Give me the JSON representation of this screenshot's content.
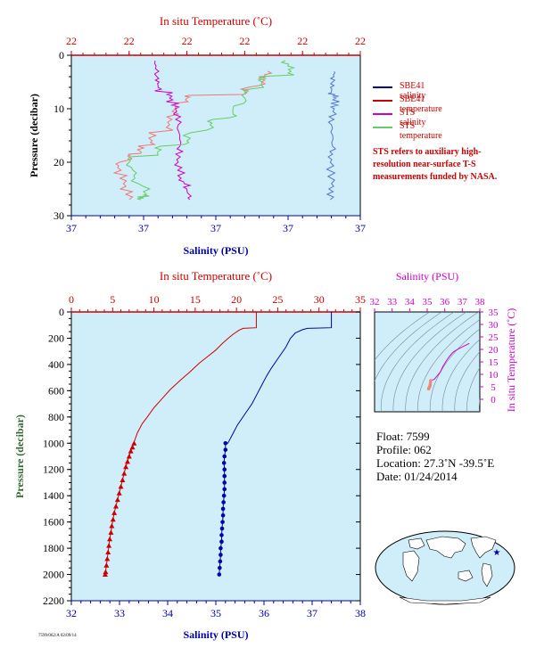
{
  "colors": {
    "plot_bg": "#d0eef9",
    "red": "#cc0000",
    "blue": "#0000aa",
    "magenta": "#cc00cc",
    "green": "#339933",
    "sbe_salinity_top": "#5577cc",
    "sbe_temp_top": "#ee7777",
    "sts_temp_top": "#77cc77",
    "axis_label_green": "#336633",
    "contour": "#778899"
  },
  "top_chart": {
    "title": "In situ Temperature (˚C)",
    "xlabel": "Salinity (PSU)",
    "ylabel": "Pressure (decibar)",
    "temp_ticks": [
      "22",
      "22",
      "22",
      "22",
      "22",
      "22"
    ],
    "salinity_ticks": [
      "37",
      "37",
      "37",
      "37",
      "37"
    ],
    "pressure_ticks": [
      "0",
      "10",
      "20",
      "30"
    ]
  },
  "legend": {
    "items": [
      {
        "label": "SBE41 salinity",
        "color": "#0000aa"
      },
      {
        "label": "SBE41 temperature",
        "color": "#cc0000"
      },
      {
        "label": "STS salinity",
        "color": "#cc00cc"
      },
      {
        "label": "STS temperature",
        "color": "#66cc66"
      }
    ],
    "note": "STS refers to auxiliary high-resolution near-surface T-S measurements funded by NASA."
  },
  "main_chart": {
    "title": "In situ Temperature (˚C)",
    "xlabel": "Salinity (PSU)",
    "ylabel": "Pressure (decibar)"
  },
  "ts_chart": {
    "title": "Salinity (PSU)",
    "ylabel": "In situ Temperature (˚C)"
  },
  "float_info": {
    "float": "Float:  7599",
    "profile": "Profile:  062",
    "location": "Location:  27.3˚N  -39.5˚E",
    "date": "Date:  01/24/2014"
  },
  "footer": "7599/062/A 02/09/14",
  "chart_data": [
    {
      "id": "main_profile",
      "type": "line",
      "ylabel": "Pressure (decibar)",
      "ylim": [
        2200,
        0
      ],
      "salinity_xlim": [
        32,
        38
      ],
      "temperature_xlim": [
        0,
        35
      ],
      "salinity_ticks": [
        32,
        33,
        34,
        35,
        36,
        37,
        38
      ],
      "temperature_ticks": [
        0,
        5,
        10,
        15,
        20,
        25,
        30,
        35
      ],
      "pressure_ticks": [
        0,
        200,
        400,
        600,
        800,
        1000,
        1200,
        1400,
        1600,
        1800,
        2000,
        2200
      ],
      "series": [
        {
          "name": "SBE41 salinity",
          "axis": "salinity",
          "color": "#0000aa",
          "continuous": [
            [
              37.4,
              0
            ],
            [
              37.4,
              60
            ],
            [
              37.4,
              120
            ],
            [
              36.9,
              125
            ],
            [
              36.8,
              135
            ],
            [
              36.65,
              160
            ],
            [
              36.55,
              200
            ],
            [
              36.45,
              270
            ],
            [
              36.3,
              350
            ],
            [
              36.15,
              430
            ],
            [
              36.05,
              490
            ],
            [
              35.95,
              560
            ],
            [
              35.85,
              630
            ],
            [
              35.75,
              700
            ],
            [
              35.6,
              780
            ],
            [
              35.45,
              860
            ],
            [
              35.35,
              930
            ],
            [
              35.25,
              1000
            ]
          ],
          "bottle": [
            [
              35.2,
              1000
            ],
            [
              35.2,
              1050
            ],
            [
              35.18,
              1100
            ],
            [
              35.17,
              1150
            ],
            [
              35.18,
              1200
            ],
            [
              35.18,
              1250
            ],
            [
              35.18,
              1300
            ],
            [
              35.18,
              1350
            ],
            [
              35.17,
              1400
            ],
            [
              35.16,
              1450
            ],
            [
              35.15,
              1500
            ],
            [
              35.15,
              1550
            ],
            [
              35.14,
              1600
            ],
            [
              35.13,
              1650
            ],
            [
              35.12,
              1700
            ],
            [
              35.12,
              1750
            ],
            [
              35.1,
              1800
            ],
            [
              35.1,
              1850
            ],
            [
              35.09,
              1900
            ],
            [
              35.08,
              1950
            ],
            [
              35.07,
              2000
            ]
          ]
        },
        {
          "name": "SBE41 temperature",
          "axis": "temperature",
          "color": "#cc0000",
          "continuous": [
            [
              22.4,
              0
            ],
            [
              22.4,
              120
            ],
            [
              20.8,
              125
            ],
            [
              20.3,
              140
            ],
            [
              19.6,
              170
            ],
            [
              19.0,
              200
            ],
            [
              18.3,
              240
            ],
            [
              17.5,
              290
            ],
            [
              16.5,
              340
            ],
            [
              15.5,
              390
            ],
            [
              14.3,
              460
            ],
            [
              13.2,
              520
            ],
            [
              12.0,
              590
            ],
            [
              11.0,
              660
            ],
            [
              10.0,
              730
            ],
            [
              9.2,
              800
            ],
            [
              8.6,
              850
            ],
            [
              8.0,
              920
            ],
            [
              7.6,
              990
            ]
          ],
          "bottle": [
            [
              7.6,
              1000
            ],
            [
              7.4,
              1030
            ],
            [
              7.2,
              1060
            ],
            [
              7.0,
              1100
            ],
            [
              6.8,
              1140
            ],
            [
              6.6,
              1180
            ],
            [
              6.4,
              1230
            ],
            [
              6.2,
              1280
            ],
            [
              6.0,
              1330
            ],
            [
              5.8,
              1380
            ],
            [
              5.6,
              1430
            ],
            [
              5.4,
              1480
            ],
            [
              5.2,
              1530
            ],
            [
              5.05,
              1580
            ],
            [
              4.9,
              1630
            ],
            [
              4.8,
              1680
            ],
            [
              4.65,
              1730
            ],
            [
              4.55,
              1780
            ],
            [
              4.45,
              1830
            ],
            [
              4.35,
              1880
            ],
            [
              4.25,
              1930
            ],
            [
              4.15,
              1980
            ],
            [
              4.1,
              2000
            ]
          ]
        }
      ]
    },
    {
      "id": "ts_diagram",
      "type": "scatter",
      "xlabel": "Salinity (PSU)",
      "ylabel": "In situ Temperature (˚C)",
      "xlim": [
        32,
        38
      ],
      "ylim": [
        -5,
        35
      ],
      "x_ticks": [
        32,
        33,
        34,
        35,
        36,
        37,
        38
      ],
      "y_ticks": [
        0,
        5,
        10,
        15,
        20,
        25,
        30,
        35
      ],
      "series": [
        {
          "name": "SBE41",
          "color": "#cc00cc",
          "points": [
            [
              37.4,
              22.4
            ],
            [
              36.8,
              20.3
            ],
            [
              36.5,
              19.0
            ],
            [
              36.3,
              17.5
            ],
            [
              36.1,
              15.5
            ],
            [
              35.9,
              13.2
            ],
            [
              35.75,
              11.0
            ],
            [
              35.55,
              9.2
            ],
            [
              35.4,
              8.0
            ],
            [
              35.2,
              7.5
            ],
            [
              35.18,
              6.6
            ],
            [
              35.17,
              5.8
            ],
            [
              35.15,
              5.2
            ],
            [
              35.12,
              4.8
            ],
            [
              35.1,
              4.5
            ],
            [
              35.08,
              4.2
            ]
          ]
        }
      ]
    },
    {
      "id": "near_surface",
      "type": "line",
      "ylabel": "Pressure (decibar)",
      "ylim": [
        30,
        0
      ],
      "pressure_ticks": [
        0,
        10,
        20,
        30
      ],
      "salinity_xlim": [
        37.0,
        37.5
      ],
      "temperature_xlim": [
        22.0,
        22.5
      ],
      "series": [
        {
          "name": "SBE41 salinity",
          "axis": "salinity",
          "color": "#5577cc",
          "points": [
            [
              37.455,
              3
            ],
            [
              37.452,
              5
            ],
            [
              37.45,
              7
            ],
            [
              37.458,
              8
            ],
            [
              37.455,
              10
            ],
            [
              37.45,
              13
            ],
            [
              37.452,
              17
            ],
            [
              37.448,
              20
            ],
            [
              37.45,
              24
            ],
            [
              37.448,
              27
            ]
          ]
        },
        {
          "name": "SBE41 temperature",
          "axis": "temperature",
          "color": "#ee7777",
          "points": [
            [
              22.34,
              3
            ],
            [
              22.33,
              5
            ],
            [
              22.3,
              7
            ],
            [
              22.2,
              8
            ],
            [
              22.18,
              10
            ],
            [
              22.17,
              13
            ],
            [
              22.14,
              16
            ],
            [
              22.12,
              18
            ],
            [
              22.1,
              19
            ],
            [
              22.08,
              21
            ],
            [
              22.09,
              24
            ],
            [
              22.1,
              27
            ]
          ]
        },
        {
          "name": "STS salinity",
          "axis": "salinity",
          "color": "#cc00cc",
          "points": [
            [
              37.145,
              1
            ],
            [
              37.148,
              4
            ],
            [
              37.15,
              6
            ],
            [
              37.17,
              8
            ],
            [
              37.18,
              10
            ],
            [
              37.185,
              13
            ],
            [
              37.188,
              17
            ],
            [
              37.185,
              20
            ],
            [
              37.19,
              23
            ],
            [
              37.2,
              25
            ],
            [
              37.205,
              27
            ]
          ]
        },
        {
          "name": "STS temperature",
          "axis": "temperature",
          "color": "#66cc66",
          "points": [
            [
              22.37,
              1
            ],
            [
              22.38,
              3
            ],
            [
              22.33,
              5
            ],
            [
              22.3,
              8
            ],
            [
              22.28,
              11
            ],
            [
              22.24,
              13
            ],
            [
              22.2,
              16
            ],
            [
              22.15,
              18
            ],
            [
              22.1,
              20
            ],
            [
              22.11,
              23
            ],
            [
              22.13,
              26
            ],
            [
              22.12,
              27
            ]
          ]
        }
      ]
    }
  ]
}
